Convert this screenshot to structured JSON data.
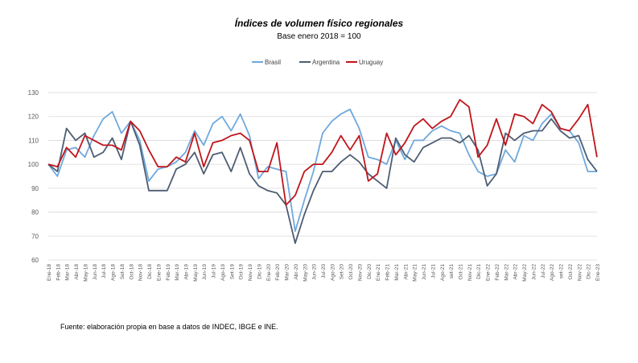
{
  "chart_data": {
    "type": "line",
    "title": "Índices de volumen físico regionales",
    "subtitle": "Base enero 2018 = 100",
    "xlabel": "",
    "ylabel": "",
    "ylim": [
      60,
      130
    ],
    "yticks": [
      60,
      70,
      80,
      90,
      100,
      110,
      120,
      130
    ],
    "grid": true,
    "legend_position": "top-center",
    "categories": [
      "Ene-18",
      "Feb-18",
      "Mar-18",
      "Abr-18",
      "May-18",
      "Jun-18",
      "Jul-18",
      "Ago-18",
      "Set-18",
      "Oct-18",
      "Nov-18",
      "Dic-18",
      "Ene-19",
      "Feb-19",
      "Mar-19",
      "Abr-19",
      "May-19",
      "Jun-19",
      "Jul-19",
      "Ago-19",
      "Set-19",
      "Oct-19",
      "Nov-19",
      "Dic-19",
      "Ene-20",
      "Feb-20",
      "Mar-20",
      "Abr-20",
      "May-20",
      "Jun-20",
      "Jul-20",
      "Ago-20",
      "Set-20",
      "Oct-20",
      "Nov-20",
      "Dic-20",
      "Ene-21",
      "Feb-21",
      "Mar-21",
      "Abr-21",
      "May-21",
      "Jun-21",
      "Jul-21",
      "Ago-21",
      "set-21",
      "Oct-21",
      "Nov-21",
      "Dic-21",
      "Ene-22",
      "Feb-22",
      "Mar-22",
      "Abr-22",
      "May-22",
      "Jun-22",
      "Jul-22",
      "Ago-22",
      "set-22",
      "Oct-22",
      "Nov-22",
      "Dic-22",
      "Ene-23"
    ],
    "series": [
      {
        "name": "Brasil",
        "color": "#6fa8dc",
        "values": [
          100,
          95,
          106,
          107,
          103,
          112,
          119,
          122,
          113,
          118,
          110,
          93,
          98,
          99,
          101,
          105,
          114,
          108,
          117,
          120,
          114,
          121,
          112,
          94,
          99,
          98,
          97,
          72,
          85,
          97,
          113,
          118,
          121,
          123,
          115,
          103,
          102,
          100,
          110,
          102,
          110,
          110,
          114,
          116,
          114,
          113,
          104,
          97,
          95,
          96,
          106,
          101,
          112,
          110,
          117,
          121,
          115,
          114,
          109,
          97,
          97
        ]
      },
      {
        "name": "Argentina",
        "color": "#4d5d73",
        "values": [
          100,
          97,
          115,
          110,
          113,
          103,
          105,
          111,
          102,
          118,
          108,
          89,
          89,
          89,
          98,
          100,
          105,
          96,
          104,
          105,
          97,
          107,
          96,
          91,
          89,
          88,
          83,
          67,
          79,
          89,
          97,
          97,
          101,
          104,
          101,
          96,
          93,
          90,
          111,
          104,
          101,
          107,
          109,
          111,
          111,
          109,
          112,
          106,
          91,
          96,
          113,
          110,
          113,
          114,
          114,
          119,
          114,
          111,
          112,
          102,
          97
        ]
      },
      {
        "name": "Uruguay",
        "color": "#c0151b",
        "values": [
          100,
          99,
          107,
          103,
          112,
          110,
          108,
          108,
          106,
          118,
          114,
          106,
          99,
          99,
          103,
          101,
          113,
          99,
          109,
          110,
          112,
          113,
          110,
          97,
          97,
          109,
          83,
          87,
          97,
          100,
          100,
          105,
          112,
          106,
          112,
          93,
          96,
          113,
          104,
          109,
          116,
          119,
          115,
          118,
          120,
          127,
          124,
          103,
          108,
          119,
          108,
          121,
          120,
          117,
          125,
          122,
          115,
          114,
          119,
          125,
          103
        ]
      }
    ]
  },
  "source_note": "Fuente: elaboración propia en base a datos de INDEC, IBGE e INE."
}
